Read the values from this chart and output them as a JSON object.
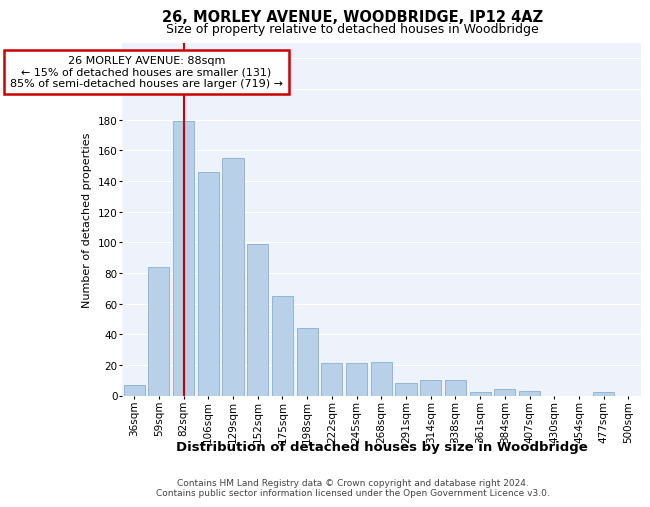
{
  "title": "26, MORLEY AVENUE, WOODBRIDGE, IP12 4AZ",
  "subtitle": "Size of property relative to detached houses in Woodbridge",
  "xlabel": "Distribution of detached houses by size in Woodbridge",
  "ylabel": "Number of detached properties",
  "categories": [
    "36sqm",
    "59sqm",
    "82sqm",
    "106sqm",
    "129sqm",
    "152sqm",
    "175sqm",
    "198sqm",
    "222sqm",
    "245sqm",
    "268sqm",
    "291sqm",
    "314sqm",
    "338sqm",
    "361sqm",
    "384sqm",
    "407sqm",
    "430sqm",
    "454sqm",
    "477sqm",
    "500sqm"
  ],
  "values": [
    7,
    84,
    179,
    146,
    155,
    99,
    65,
    44,
    21,
    21,
    22,
    8,
    10,
    10,
    2,
    4,
    3,
    0,
    0,
    2,
    0
  ],
  "bar_color": "#b8d0e8",
  "bar_edge_color": "#8ab0d0",
  "highlight_x": "82sqm",
  "highlight_line_color": "#cc0000",
  "annotation_text": "26 MORLEY AVENUE: 88sqm\n← 15% of detached houses are smaller (131)\n85% of semi-detached houses are larger (719) →",
  "annotation_box_facecolor": "#ffffff",
  "annotation_box_edgecolor": "#cc0000",
  "ylim": [
    0,
    230
  ],
  "yticks": [
    0,
    20,
    40,
    60,
    80,
    100,
    120,
    140,
    160,
    180,
    200,
    220
  ],
  "plot_bg_color": "#eef2fa",
  "grid_color": "#ffffff",
  "footer_line1": "Contains HM Land Registry data © Crown copyright and database right 2024.",
  "footer_line2": "Contains public sector information licensed under the Open Government Licence v3.0.",
  "title_fontsize": 10.5,
  "subtitle_fontsize": 9,
  "xlabel_fontsize": 9.5,
  "ylabel_fontsize": 8,
  "tick_fontsize": 7.5,
  "annotation_fontsize": 8,
  "footer_fontsize": 6.5
}
